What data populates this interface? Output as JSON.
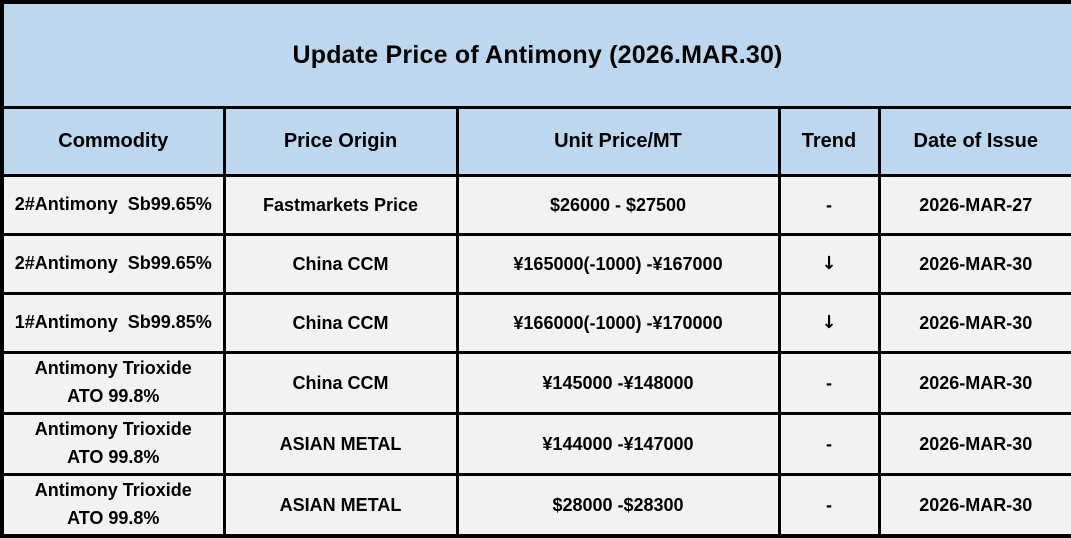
{
  "title": "Update Price of Antimony (2026.MAR.30)",
  "colors": {
    "header_bg": "#BDD7EE",
    "row_bg": "#F2F2F2",
    "border": "#000000",
    "text": "#000000"
  },
  "table": {
    "columns": [
      "Commodity",
      "Price Origin",
      "Unit Price/MT",
      "Trend",
      "Date of Issue"
    ],
    "rows": [
      {
        "commodity": "2#Antimony  Sb99.65%",
        "origin": "Fastmarkets Price",
        "price": "$26000 - $27500",
        "trend": "-",
        "date": "2026-MAR-27"
      },
      {
        "commodity": "2#Antimony  Sb99.65%",
        "origin": "China CCM",
        "price": "¥165000(-1000) -¥167000",
        "trend": "↓",
        "date": "2026-MAR-30"
      },
      {
        "commodity": "1#Antimony  Sb99.85%",
        "origin": "China CCM",
        "price": "¥166000(-1000) -¥170000",
        "trend": "↓",
        "date": "2026-MAR-30"
      },
      {
        "commodity": "Antimony Trioxide\nATO 99.8%",
        "origin": "China CCM",
        "price": "¥145000 -¥148000",
        "trend": "-",
        "date": "2026-MAR-30"
      },
      {
        "commodity": "Antimony Trioxide\nATO 99.8%",
        "origin": "ASIAN METAL",
        "price": "¥144000 -¥147000",
        "trend": "-",
        "date": "2026-MAR-30"
      },
      {
        "commodity": "Antimony Trioxide\nATO 99.8%",
        "origin": "ASIAN METAL",
        "price": "$28000 -$28300",
        "trend": "-",
        "date": "2026-MAR-30"
      }
    ]
  }
}
